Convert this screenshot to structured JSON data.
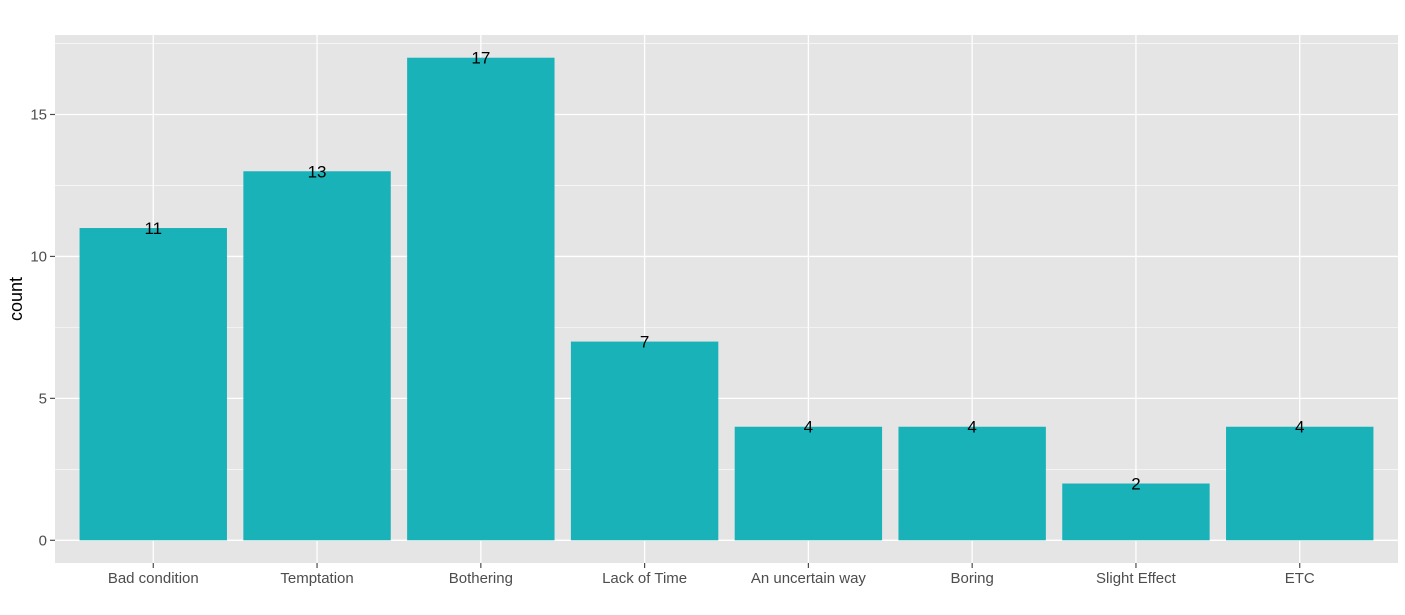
{
  "chart_data": {
    "type": "bar",
    "categories": [
      "Bad condition",
      "Temptation",
      "Bothering",
      "Lack of Time",
      "An uncertain way",
      "Boring",
      "Slight Effect",
      "ETC"
    ],
    "values": [
      11,
      13,
      17,
      7,
      4,
      4,
      2,
      4
    ],
    "data_labels": [
      "11",
      "13",
      "17",
      "7",
      "4",
      "4",
      "2",
      "4"
    ],
    "ylabel": "count",
    "xlabel": "",
    "ylim": [
      -0.8,
      17.8
    ],
    "y_ticks": [
      0,
      5,
      10,
      15
    ],
    "y_tick_labels": [
      "0",
      "5",
      "10",
      "15"
    ],
    "grid": true,
    "colors": {
      "bar": "#19B2B8",
      "panel": "#E5E5E5",
      "grid": "#FFFFFF",
      "tick": "#4D4D4D"
    }
  }
}
